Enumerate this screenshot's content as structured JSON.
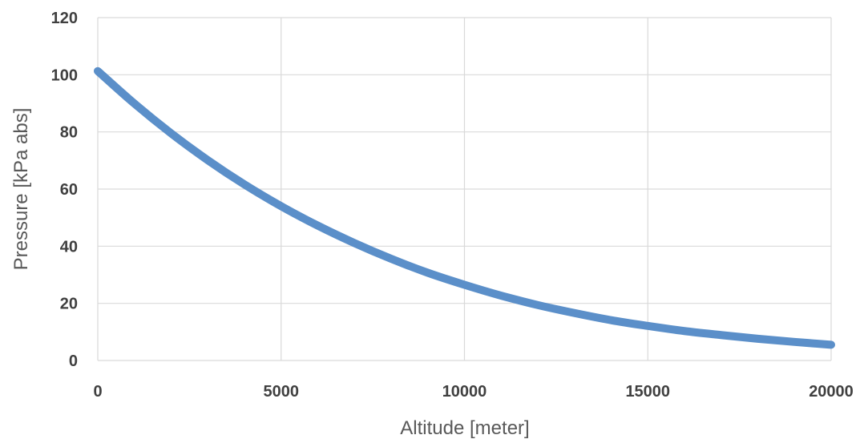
{
  "chart_data": {
    "type": "line",
    "title": "",
    "xlabel": "Altitude [meter]",
    "ylabel": "Pressure [kPa abs]",
    "xlim": [
      0,
      20000
    ],
    "ylim": [
      0,
      120
    ],
    "xticks": [
      0,
      5000,
      10000,
      15000,
      20000
    ],
    "yticks": [
      0,
      20,
      40,
      60,
      80,
      100,
      120
    ],
    "x_tick_labels": [
      "0",
      "5000",
      "10000",
      "15000",
      "20000"
    ],
    "y_tick_labels": [
      "0",
      "20",
      "40",
      "60",
      "80",
      "100",
      "120"
    ],
    "grid": true,
    "legend": "none",
    "series": [
      {
        "color": "#5b8fc9",
        "x": [
          0,
          1000,
          2000,
          3000,
          4000,
          5000,
          6000,
          7000,
          8000,
          9000,
          10000,
          11000,
          12000,
          13000,
          14000,
          15000,
          16000,
          17000,
          18000,
          19000,
          20000
        ],
        "y": [
          101.3,
          89.9,
          79.5,
          70.1,
          61.6,
          54.0,
          47.2,
          41.1,
          35.6,
          30.7,
          26.5,
          22.7,
          19.4,
          16.6,
          14.1,
          12.1,
          10.3,
          8.9,
          7.6,
          6.5,
          5.5
        ]
      }
    ]
  }
}
